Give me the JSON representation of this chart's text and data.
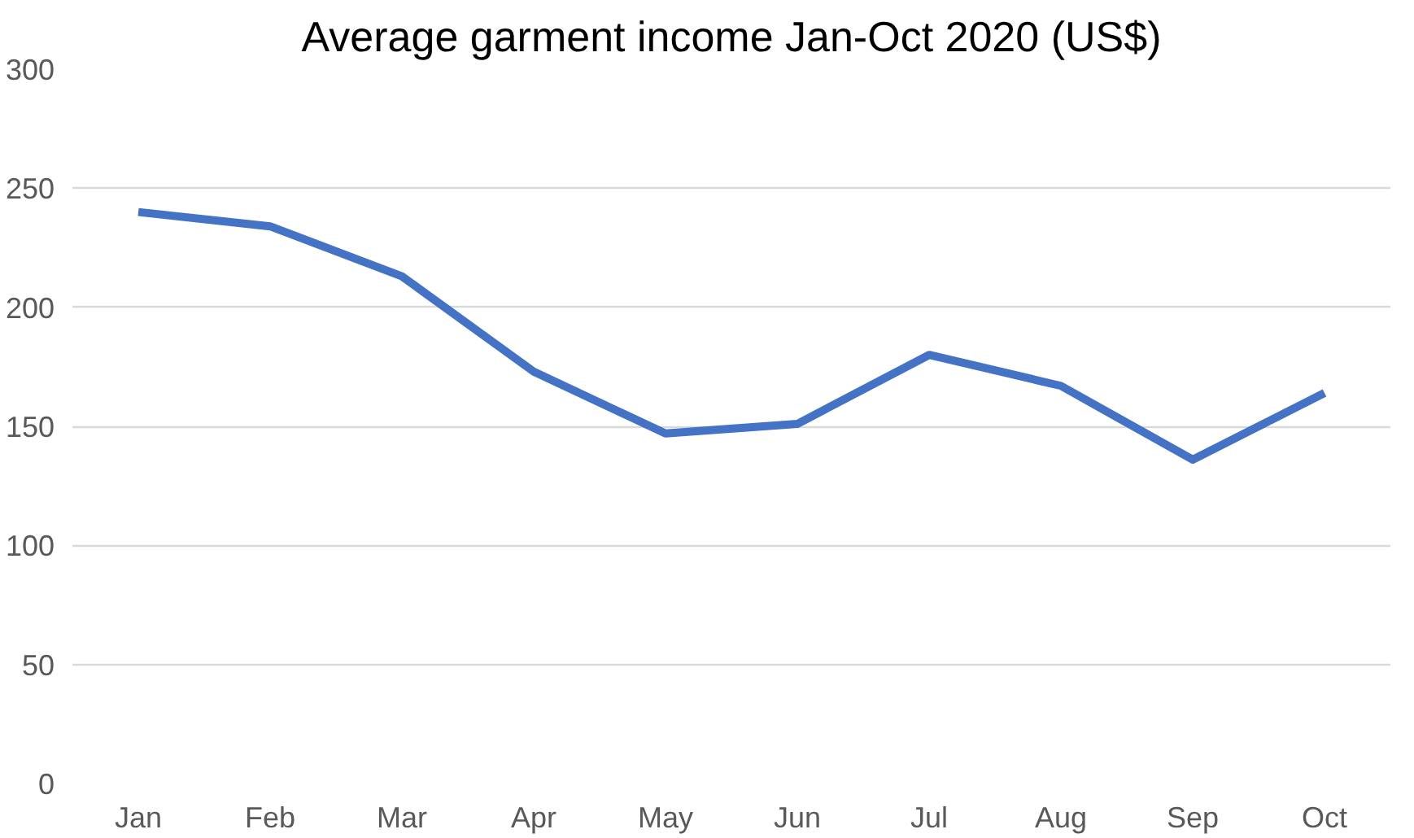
{
  "chart_data": {
    "type": "line",
    "title": "Average garment income Jan-Oct 2020 (US$)",
    "categories": [
      "Jan",
      "Feb",
      "Mar",
      "Apr",
      "May",
      "Jun",
      "Jul",
      "Aug",
      "Sep",
      "Oct"
    ],
    "series": [
      {
        "color": "#4472c4",
        "values": [
          240,
          234,
          213,
          173,
          147,
          151,
          180,
          167,
          136,
          164
        ]
      }
    ],
    "ylim": [
      0,
      300
    ],
    "yticks": [
      0,
      50,
      100,
      150,
      200,
      250,
      300
    ],
    "grid": "y",
    "marker": "none",
    "line_style": "solid"
  }
}
